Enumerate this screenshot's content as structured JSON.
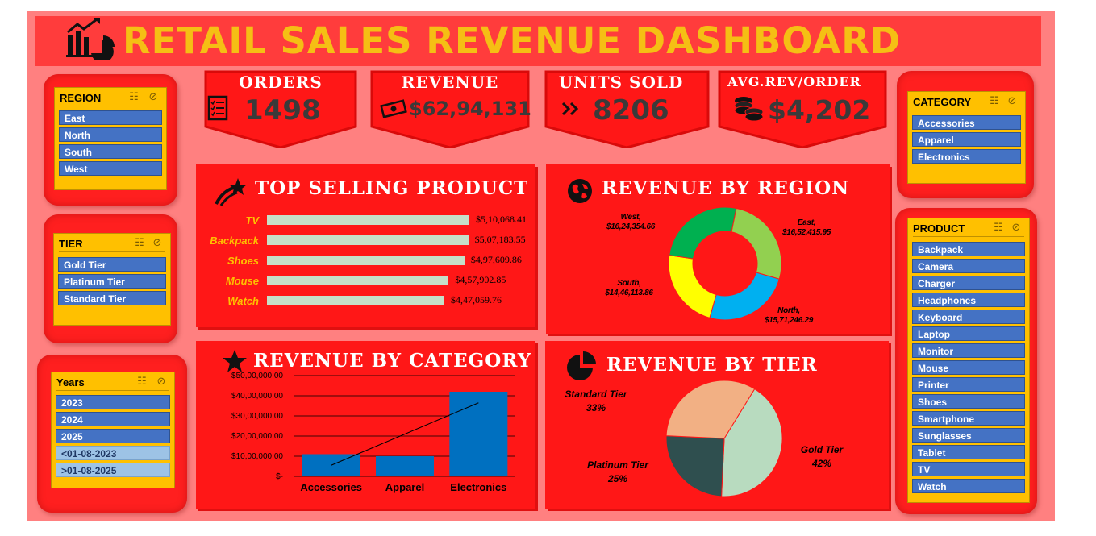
{
  "header": {
    "title": "RETAIL SALES REVENUE DASHBOARD",
    "icon": "sales-chart-icon"
  },
  "kpis": {
    "orders": {
      "label": "ORDERS",
      "value": "1498",
      "icon": "checklist-icon"
    },
    "revenue": {
      "label": "REVENUE",
      "value": "$62,94,131",
      "icon": "cash-icon"
    },
    "units_sold": {
      "label": "UNITS SOLD",
      "value": "8206",
      "icon": "double-chevron-icon"
    },
    "avg_rev_order": {
      "label": "AVG.REV/ORDER",
      "value": "$4,202",
      "icon": "coins-icon"
    }
  },
  "slicers": {
    "region": {
      "title": "REGION",
      "items": [
        "East",
        "North",
        "South",
        "West"
      ]
    },
    "tier": {
      "title": "TIER",
      "items": [
        "Gold Tier",
        "Platinum Tier",
        "Standard Tier"
      ]
    },
    "years": {
      "title": "Years",
      "items": [
        "2023",
        "2024",
        "2025",
        "<01-08-2023",
        ">01-08-2025"
      ]
    },
    "category": {
      "title": "CATEGORY",
      "items": [
        "Accessories",
        "Apparel",
        "Electronics"
      ]
    },
    "product": {
      "title": "PRODUCT",
      "items": [
        "Backpack",
        "Camera",
        "Charger",
        "Headphones",
        "Keyboard",
        "Laptop",
        "Monitor",
        "Mouse",
        "Printer",
        "Shoes",
        "Smartphone",
        "Sunglasses",
        "Tablet",
        "TV",
        "Watch"
      ]
    }
  },
  "panels": {
    "top_product": {
      "title": "TOP SELLING PRODUCT",
      "icon": "shooting-star-icon"
    },
    "region": {
      "title": "REVENUE BY REGION",
      "icon": "globe-icon"
    },
    "category": {
      "title": "REVENUE BY CATEGORY",
      "icon": "star-icon"
    },
    "tier": {
      "title": "REVENUE BY TIER",
      "icon": "pie-chart-icon"
    }
  },
  "colors": {
    "page": "#ff8080",
    "panel": "#ff1717",
    "title": "#f5bf14",
    "slicer": "#ffc000",
    "slicer_item": "#4472c4"
  },
  "chart_data": [
    {
      "type": "bar",
      "orientation": "horizontal",
      "categories": [
        "TV",
        "Backpack",
        "Shoes",
        "Mouse",
        "Watch"
      ],
      "values": [
        510068.41,
        507183.55,
        497609.86,
        457902.85,
        447059.76
      ],
      "value_labels": [
        "$5,10,068.41",
        "$5,07,183.55",
        "$4,97,609.86",
        "$4,57,902.85",
        "$4,47,059.76"
      ],
      "grid": false
    },
    {
      "type": "pie",
      "variant": "doughnut",
      "labels": [
        "East",
        "North",
        "South",
        "West"
      ],
      "values": [
        1652415.95,
        1571246.29,
        1446113.86,
        1624354.66
      ],
      "value_labels": [
        "$16,52,415.95",
        "$15,71,246.29",
        "$14,46,113.86",
        "$16,24,354.66"
      ],
      "colors": [
        "#92d050",
        "#00b0f0",
        "#ffff00",
        "#00b050"
      ]
    },
    {
      "type": "bar",
      "categories": [
        "Accessories",
        "Apparel",
        "Electronics"
      ],
      "values": [
        1100000,
        1000000,
        4200000
      ],
      "yticks": [
        "$-",
        "$10,00,000.00",
        "$20,00,000.00",
        "$30,00,000.00",
        "$40,00,000.00",
        "$50,00,000.00"
      ],
      "ylim": [
        0,
        5000000
      ],
      "trendline": true,
      "grid": true
    },
    {
      "type": "pie",
      "labels": [
        "Gold Tier",
        "Platinum Tier",
        "Standard Tier"
      ],
      "values": [
        42,
        25,
        33
      ],
      "value_labels": [
        "42%",
        "25%",
        "33%"
      ],
      "colors": [
        "#b8dbbf",
        "#2f4f4f",
        "#f2b084"
      ]
    }
  ]
}
